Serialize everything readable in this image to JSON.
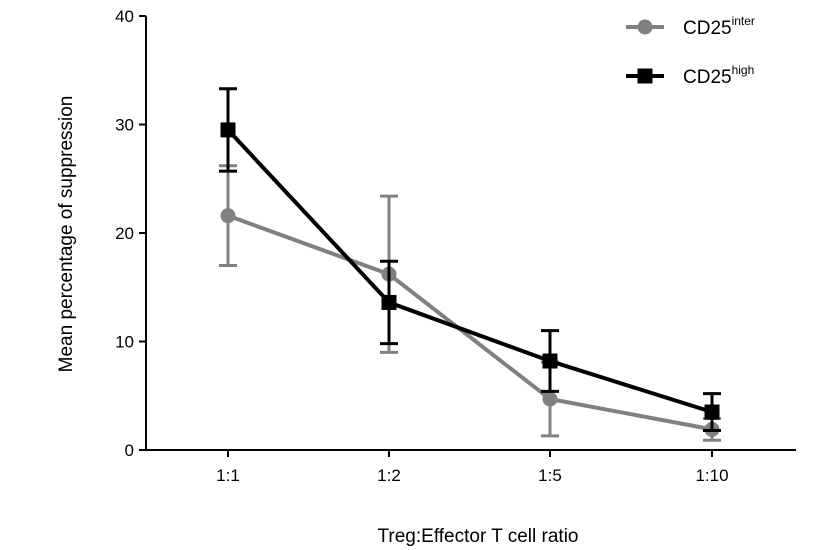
{
  "chart_data": {
    "type": "line",
    "categories": [
      "1:1",
      "1:2",
      "1:5",
      "1:10"
    ],
    "xlabel": "Treg:Effector T cell ratio",
    "ylabel": "Mean percentage of suppression",
    "ylim": [
      0,
      40
    ],
    "yticks": [
      "0",
      "10",
      "20",
      "30",
      "40"
    ],
    "grid": false,
    "legend_position": "top-right",
    "series": [
      {
        "name": "CD25",
        "name_sup": "inter",
        "color": "#808080",
        "marker": "circle",
        "values": [
          21.6,
          16.2,
          4.7,
          1.9
        ],
        "error": [
          4.6,
          7.2,
          3.4,
          1.0
        ]
      },
      {
        "name": "CD25",
        "name_sup": "high",
        "color": "#000000",
        "marker": "square",
        "values": [
          29.5,
          13.6,
          8.2,
          3.5
        ],
        "error": [
          3.8,
          3.8,
          2.8,
          1.7
        ]
      }
    ]
  }
}
